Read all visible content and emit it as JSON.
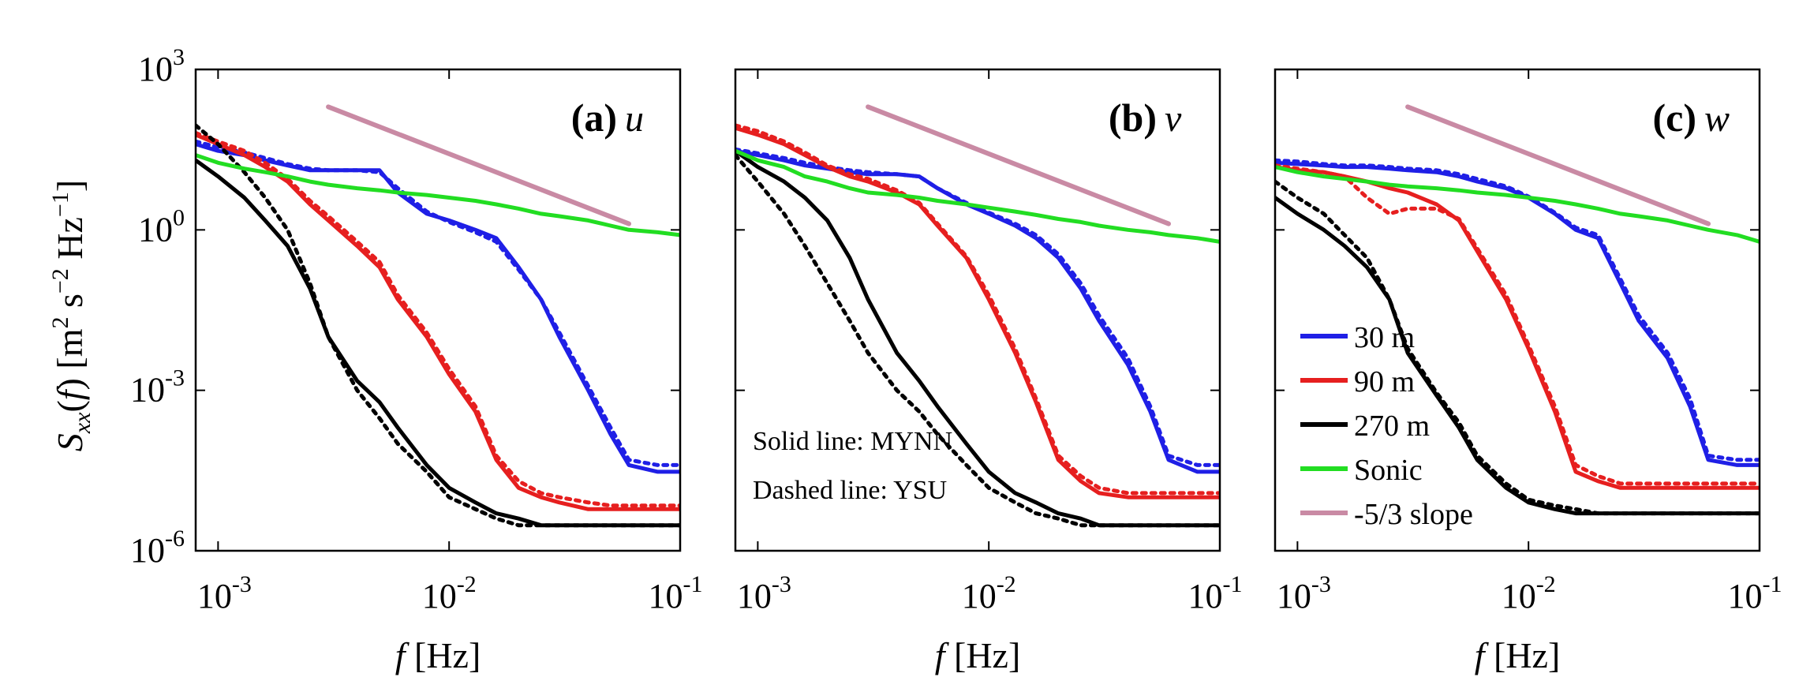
{
  "chart_data": [
    {
      "type": "line",
      "panel_label": "(a)",
      "panel_var": "u",
      "xlabel": "f   [Hz]",
      "ylabel": "S_xx(f)  [m2 s-2 Hz-1]",
      "x_scale": "log",
      "y_scale": "log",
      "xlim": [
        0.0008,
        0.1
      ],
      "ylim": [
        1e-06,
        1000
      ],
      "x_ticks": [
        "10^-3",
        "10^-2",
        "10^-1"
      ],
      "y_ticks": [
        "10^-6",
        "10^-3",
        "10^0",
        "10^3"
      ],
      "x": [
        0.0008,
        0.001,
        0.0013,
        0.0016,
        0.002,
        0.0025,
        0.003,
        0.004,
        0.005,
        0.006,
        0.008,
        0.01,
        0.013,
        0.016,
        0.02,
        0.025,
        0.03,
        0.04,
        0.05,
        0.06,
        0.08,
        0.1
      ],
      "series": [
        {
          "name": "30 m",
          "color": "#1f1fe6",
          "style": "solid",
          "values": [
            40,
            30,
            25,
            20,
            16,
            13,
            13,
            13,
            13,
            5,
            2,
            1.5,
            1,
            0.7,
            0.2,
            0.05,
            0.01,
            0.001,
            0.00015,
            4e-05,
            3e-05,
            3e-05
          ]
        },
        {
          "name": "30 m",
          "color": "#1f1fe6",
          "style": "dashed",
          "values": [
            45,
            35,
            28,
            22,
            17,
            14,
            13,
            13,
            12,
            6,
            2.2,
            1.4,
            0.9,
            0.6,
            0.18,
            0.05,
            0.012,
            0.0012,
            0.0002,
            5e-05,
            4e-05,
            4e-05
          ]
        },
        {
          "name": "90 m",
          "color": "#e61f1f",
          "style": "solid",
          "values": [
            60,
            40,
            25,
            15,
            8,
            3,
            1.5,
            0.5,
            0.2,
            0.05,
            0.01,
            0.002,
            0.0004,
            5e-05,
            1.5e-05,
            1e-05,
            8e-06,
            6e-06,
            6e-06,
            6e-06,
            6e-06,
            6e-06
          ]
        },
        {
          "name": "90 m",
          "color": "#e61f1f",
          "style": "dashed",
          "values": [
            65,
            45,
            30,
            18,
            9,
            3.5,
            1.8,
            0.6,
            0.25,
            0.06,
            0.012,
            0.0025,
            0.0005,
            6e-05,
            2e-05,
            1.2e-05,
            1e-05,
            8e-06,
            7e-06,
            7e-06,
            7e-06,
            7e-06
          ]
        },
        {
          "name": "270 m",
          "color": "#000000",
          "style": "solid",
          "values": [
            20,
            10,
            4,
            1.5,
            0.5,
            0.08,
            0.01,
            0.0015,
            0.0006,
            0.0002,
            4e-05,
            1.5e-05,
            8e-06,
            5e-06,
            4e-06,
            3e-06,
            3e-06,
            3e-06,
            3e-06,
            3e-06,
            3e-06,
            3e-06
          ]
        },
        {
          "name": "270 m",
          "color": "#000000",
          "style": "dashed",
          "values": [
            90,
            40,
            12,
            4,
            1,
            0.1,
            0.01,
            0.001,
            0.0003,
            0.0001,
            3e-05,
            1e-05,
            6e-06,
            4e-06,
            3e-06,
            3e-06,
            3e-06,
            3e-06,
            3e-06,
            3e-06,
            3e-06,
            3e-06
          ]
        },
        {
          "name": "Sonic",
          "color": "#22dd22",
          "style": "solid",
          "values": [
            25,
            18,
            14,
            12,
            10,
            8,
            7,
            6,
            5.5,
            5,
            4.5,
            4,
            3.5,
            3,
            2.5,
            2,
            1.8,
            1.5,
            1.2,
            1,
            0.9,
            0.8
          ]
        },
        {
          "name": "-5/3 slope",
          "color": "#c98aa4",
          "style": "solid",
          "points": [
            [
              0.003,
              200
            ],
            [
              0.06,
              1.3
            ]
          ]
        }
      ]
    },
    {
      "type": "line",
      "panel_label": "(b)",
      "panel_var": "v",
      "xlabel": "f   [Hz]",
      "x_scale": "log",
      "y_scale": "log",
      "xlim": [
        0.0008,
        0.1
      ],
      "ylim": [
        1e-06,
        1000
      ],
      "x_ticks": [
        "10^-3",
        "10^-2",
        "10^-1"
      ],
      "annotations": [
        "Solid line: MYNN",
        "Dashed line: YSU"
      ],
      "x": [
        0.0008,
        0.001,
        0.0013,
        0.0016,
        0.002,
        0.0025,
        0.003,
        0.004,
        0.005,
        0.006,
        0.008,
        0.01,
        0.013,
        0.016,
        0.02,
        0.025,
        0.03,
        0.04,
        0.05,
        0.06,
        0.08,
        0.1
      ],
      "series": [
        {
          "name": "30 m",
          "color": "#1f1fe6",
          "style": "solid",
          "values": [
            30,
            25,
            20,
            16,
            14,
            12,
            11,
            11,
            10,
            6,
            3,
            2,
            1.2,
            0.7,
            0.3,
            0.08,
            0.02,
            0.003,
            0.0004,
            5e-05,
            3e-05,
            3e-05
          ]
        },
        {
          "name": "30 m",
          "color": "#1f1fe6",
          "style": "dashed",
          "values": [
            32,
            27,
            22,
            18,
            15,
            13,
            12,
            11,
            10,
            6,
            3.2,
            2.1,
            1.3,
            0.8,
            0.35,
            0.1,
            0.025,
            0.004,
            0.0005,
            6e-05,
            4e-05,
            4e-05
          ]
        },
        {
          "name": "90 m",
          "color": "#e61f1f",
          "style": "solid",
          "values": [
            80,
            60,
            40,
            25,
            15,
            10,
            8,
            5,
            3,
            1.2,
            0.3,
            0.05,
            0.005,
            0.0006,
            5e-05,
            2e-05,
            1.2e-05,
            1e-05,
            1e-05,
            1e-05,
            1e-05,
            1e-05
          ]
        },
        {
          "name": "90 m",
          "color": "#e61f1f",
          "style": "dashed",
          "values": [
            90,
            70,
            45,
            28,
            16,
            11,
            9,
            5.5,
            3.2,
            1.3,
            0.32,
            0.06,
            0.006,
            0.0007,
            6e-05,
            2.5e-05,
            1.5e-05,
            1.2e-05,
            1.2e-05,
            1.2e-05,
            1.2e-05,
            1.2e-05
          ]
        },
        {
          "name": "270 m",
          "color": "#000000",
          "style": "solid",
          "values": [
            30,
            15,
            8,
            4,
            1.5,
            0.3,
            0.05,
            0.005,
            0.0015,
            0.0005,
            0.0001,
            3e-05,
            1.2e-05,
            8e-06,
            5e-06,
            4e-06,
            3e-06,
            3e-06,
            3e-06,
            3e-06,
            3e-06,
            3e-06
          ]
        },
        {
          "name": "270 m",
          "color": "#000000",
          "style": "dashed",
          "values": [
            25,
            8,
            2,
            0.5,
            0.1,
            0.02,
            0.005,
            0.001,
            0.0004,
            0.00015,
            4e-05,
            1.5e-05,
            8e-06,
            5e-06,
            4e-06,
            3e-06,
            3e-06,
            3e-06,
            3e-06,
            3e-06,
            3e-06,
            3e-06
          ]
        },
        {
          "name": "Sonic",
          "color": "#22dd22",
          "style": "solid",
          "values": [
            30,
            20,
            15,
            10,
            8,
            6,
            5,
            4.5,
            4,
            3.5,
            3,
            2.6,
            2.2,
            1.9,
            1.6,
            1.4,
            1.2,
            1,
            0.9,
            0.8,
            0.7,
            0.6
          ]
        },
        {
          "name": "-5/3 slope",
          "color": "#c98aa4",
          "style": "solid",
          "points": [
            [
              0.003,
              200
            ],
            [
              0.06,
              1.3
            ]
          ]
        }
      ]
    },
    {
      "type": "line",
      "panel_label": "(c)",
      "panel_var": "w",
      "xlabel": "f   [Hz]",
      "x_scale": "log",
      "y_scale": "log",
      "xlim": [
        0.0008,
        0.1
      ],
      "ylim": [
        1e-06,
        1000
      ],
      "x_ticks": [
        "10^-3",
        "10^-2",
        "10^-1"
      ],
      "legend": {
        "position": "lower-left",
        "entries": [
          {
            "label": "30 m",
            "color": "#1f1fe6"
          },
          {
            "label": "90 m",
            "color": "#e61f1f"
          },
          {
            "label": "270 m",
            "color": "#000000"
          },
          {
            "label": "Sonic",
            "color": "#22dd22"
          },
          {
            "label": "-5/3 slope",
            "color": "#c98aa4"
          }
        ]
      },
      "x": [
        0.0008,
        0.001,
        0.0013,
        0.0016,
        0.002,
        0.0025,
        0.003,
        0.004,
        0.005,
        0.006,
        0.008,
        0.01,
        0.013,
        0.016,
        0.02,
        0.025,
        0.03,
        0.04,
        0.05,
        0.06,
        0.08,
        0.1
      ],
      "series": [
        {
          "name": "30 m",
          "color": "#1f1fe6",
          "style": "solid",
          "values": [
            18,
            17,
            16,
            15,
            15,
            14,
            13,
            12,
            10,
            8,
            6,
            4,
            2,
            1,
            0.7,
            0.1,
            0.02,
            0.004,
            0.0005,
            5e-05,
            4e-05,
            4e-05
          ]
        },
        {
          "name": "30 m",
          "color": "#1f1fe6",
          "style": "dashed",
          "values": [
            20,
            19,
            17,
            16,
            16,
            15,
            14,
            13,
            11,
            9,
            6.5,
            4.2,
            2.1,
            1.1,
            0.8,
            0.12,
            0.025,
            0.005,
            0.0007,
            6e-05,
            5e-05,
            5e-05
          ]
        },
        {
          "name": "90 m",
          "color": "#e61f1f",
          "style": "solid",
          "values": [
            15,
            13,
            12,
            10,
            8,
            6,
            5,
            3,
            1.5,
            0.4,
            0.05,
            0.006,
            0.0004,
            3e-05,
            2e-05,
            1.5e-05,
            1.5e-05,
            1.5e-05,
            1.5e-05,
            1.5e-05,
            1.5e-05,
            1.5e-05
          ]
        },
        {
          "name": "90 m",
          "color": "#e61f1f",
          "style": "dashed",
          "values": [
            16,
            14,
            12,
            10,
            4,
            2,
            2.5,
            2.5,
            1.6,
            0.45,
            0.06,
            0.007,
            0.0005,
            4e-05,
            2.5e-05,
            1.8e-05,
            1.8e-05,
            1.8e-05,
            1.8e-05,
            1.8e-05,
            1.8e-05,
            1.8e-05
          ]
        },
        {
          "name": "270 m",
          "color": "#000000",
          "style": "solid",
          "values": [
            4,
            2,
            1,
            0.5,
            0.2,
            0.05,
            0.005,
            0.0008,
            0.0002,
            5e-05,
            1.5e-05,
            8e-06,
            6e-06,
            5e-06,
            5e-06,
            5e-06,
            5e-06,
            5e-06,
            5e-06,
            5e-06,
            5e-06,
            5e-06
          ]
        },
        {
          "name": "270 m",
          "color": "#000000",
          "style": "dashed",
          "values": [
            8,
            4,
            2,
            0.8,
            0.3,
            0.05,
            0.006,
            0.0009,
            0.00025,
            6e-05,
            1.8e-05,
            9e-06,
            7e-06,
            6e-06,
            5e-06,
            5e-06,
            5e-06,
            5e-06,
            5e-06,
            5e-06,
            5e-06,
            5e-06
          ]
        },
        {
          "name": "Sonic",
          "color": "#22dd22",
          "style": "solid",
          "values": [
            15,
            12,
            10,
            9,
            8,
            7,
            6.5,
            6,
            5.5,
            5,
            4.5,
            4,
            3.5,
            3,
            2.5,
            2,
            1.8,
            1.5,
            1.2,
            1,
            0.8,
            0.6
          ]
        },
        {
          "name": "-5/3 slope",
          "color": "#c98aa4",
          "style": "solid",
          "points": [
            [
              0.003,
              200
            ],
            [
              0.06,
              1.3
            ]
          ]
        }
      ]
    }
  ]
}
